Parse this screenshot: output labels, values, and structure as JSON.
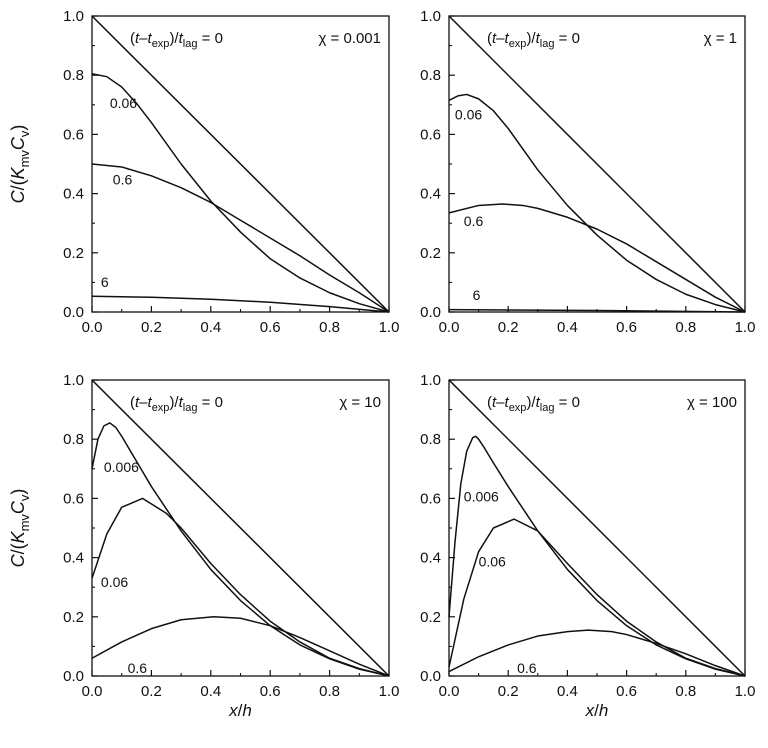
{
  "figure": {
    "y_axis_label": {
      "main": "C",
      "slash": "/(",
      "K": "K",
      "K_sub": "mv",
      "C": "C",
      "C_sub": "v",
      "close": ")"
    },
    "x_axis_label": {
      "x": "x",
      "slash": "/",
      "h": "h"
    },
    "time_label": {
      "open": "(",
      "t": "t",
      "dash": "–",
      "t2": "t",
      "sub_exp": "exp",
      "mid": ")/",
      "t3": "t",
      "sub_lag": "lag",
      "eq": " = 0"
    }
  },
  "chart_data": [
    {
      "type": "line",
      "panel": "top-left",
      "chi_label": "χ = 0.001",
      "xlim": [
        0,
        1
      ],
      "ylim": [
        0,
        1
      ],
      "xticks": [
        "0.0",
        "0.2",
        "0.4",
        "0.6",
        "0.8",
        "1.0"
      ],
      "yticks": [
        "0.0",
        "0.2",
        "0.4",
        "0.6",
        "0.8",
        "1.0"
      ],
      "show_xlabel": false,
      "show_ylabel": true,
      "series": [
        {
          "name": "0",
          "x": [
            0,
            1
          ],
          "y": [
            1,
            0
          ]
        },
        {
          "name": "0.06",
          "label": "0.06",
          "label_at": [
            0.06,
            0.69
          ],
          "x": [
            0,
            0.05,
            0.1,
            0.15,
            0.2,
            0.3,
            0.4,
            0.5,
            0.6,
            0.7,
            0.8,
            0.9,
            1.0
          ],
          "y": [
            0.805,
            0.795,
            0.76,
            0.705,
            0.64,
            0.5,
            0.375,
            0.27,
            0.18,
            0.115,
            0.065,
            0.028,
            0
          ]
        },
        {
          "name": "0.6",
          "label": "0.6",
          "label_at": [
            0.07,
            0.43
          ],
          "x": [
            0,
            0.1,
            0.2,
            0.3,
            0.4,
            0.5,
            0.6,
            0.7,
            0.8,
            0.9,
            1.0
          ],
          "y": [
            0.5,
            0.49,
            0.46,
            0.42,
            0.37,
            0.31,
            0.25,
            0.19,
            0.125,
            0.065,
            0
          ]
        },
        {
          "name": "6",
          "label": "6",
          "label_at": [
            0.03,
            0.085
          ],
          "x": [
            0,
            0.2,
            0.4,
            0.6,
            0.8,
            1.0
          ],
          "y": [
            0.053,
            0.05,
            0.043,
            0.033,
            0.018,
            0
          ]
        }
      ]
    },
    {
      "type": "line",
      "panel": "top-right",
      "chi_label": "χ = 1",
      "xlim": [
        0,
        1
      ],
      "ylim": [
        0,
        1
      ],
      "xticks": [
        "0.0",
        "0.2",
        "0.4",
        "0.6",
        "0.8",
        "1.0"
      ],
      "yticks": [
        "0.0",
        "0.2",
        "0.4",
        "0.6",
        "0.8",
        "1.0"
      ],
      "show_xlabel": false,
      "show_ylabel": false,
      "series": [
        {
          "name": "0",
          "x": [
            0,
            1
          ],
          "y": [
            1,
            0
          ]
        },
        {
          "name": "0.06",
          "label": "0.06",
          "label_at": [
            0.02,
            0.65
          ],
          "x": [
            0,
            0.03,
            0.06,
            0.1,
            0.15,
            0.2,
            0.3,
            0.4,
            0.5,
            0.6,
            0.7,
            0.8,
            0.9,
            1.0
          ],
          "y": [
            0.715,
            0.73,
            0.735,
            0.72,
            0.68,
            0.62,
            0.48,
            0.36,
            0.26,
            0.175,
            0.11,
            0.06,
            0.025,
            0
          ]
        },
        {
          "name": "0.6",
          "label": "0.6",
          "label_at": [
            0.05,
            0.29
          ],
          "x": [
            0,
            0.1,
            0.18,
            0.25,
            0.3,
            0.4,
            0.5,
            0.6,
            0.7,
            0.8,
            0.9,
            1.0
          ],
          "y": [
            0.335,
            0.36,
            0.365,
            0.36,
            0.35,
            0.32,
            0.28,
            0.23,
            0.17,
            0.11,
            0.05,
            0
          ]
        },
        {
          "name": "6",
          "label": "6",
          "label_at": [
            0.08,
            0.04
          ],
          "x": [
            0,
            0.5,
            1.0
          ],
          "y": [
            0.008,
            0.005,
            0
          ]
        }
      ]
    },
    {
      "type": "line",
      "panel": "bottom-left",
      "chi_label": "χ = 10",
      "xlim": [
        0,
        1
      ],
      "ylim": [
        0,
        1
      ],
      "xticks": [
        "0.0",
        "0.2",
        "0.4",
        "0.6",
        "0.8",
        "1.0"
      ],
      "yticks": [
        "0.0",
        "0.2",
        "0.4",
        "0.6",
        "0.8",
        "1.0"
      ],
      "show_xlabel": true,
      "show_ylabel": true,
      "series": [
        {
          "name": "0",
          "x": [
            0,
            1
          ],
          "y": [
            1,
            0
          ]
        },
        {
          "name": "0.006",
          "label": "0.006",
          "label_at": [
            0.04,
            0.69
          ],
          "x": [
            0,
            0.02,
            0.04,
            0.06,
            0.08,
            0.1,
            0.15,
            0.2,
            0.3,
            0.4,
            0.5,
            0.6,
            0.7,
            0.8,
            0.9,
            1.0
          ],
          "y": [
            0.7,
            0.8,
            0.845,
            0.855,
            0.84,
            0.81,
            0.725,
            0.64,
            0.49,
            0.36,
            0.255,
            0.17,
            0.105,
            0.058,
            0.023,
            0
          ]
        },
        {
          "name": "0.06",
          "label": "0.06",
          "label_at": [
            0.03,
            0.3
          ],
          "x": [
            0,
            0.05,
            0.1,
            0.17,
            0.25,
            0.3,
            0.4,
            0.5,
            0.6,
            0.7,
            0.8,
            0.9,
            1.0
          ],
          "y": [
            0.33,
            0.48,
            0.57,
            0.6,
            0.55,
            0.5,
            0.38,
            0.275,
            0.185,
            0.115,
            0.06,
            0.025,
            0
          ]
        },
        {
          "name": "0.6",
          "label": "0.6",
          "label_at": [
            0.12,
            0.01
          ],
          "x": [
            0,
            0.1,
            0.2,
            0.3,
            0.41,
            0.5,
            0.6,
            0.7,
            0.8,
            0.9,
            1.0
          ],
          "y": [
            0.06,
            0.115,
            0.16,
            0.19,
            0.2,
            0.195,
            0.17,
            0.13,
            0.085,
            0.04,
            0
          ]
        }
      ]
    },
    {
      "type": "line",
      "panel": "bottom-right",
      "chi_label": "χ = 100",
      "xlim": [
        0,
        1
      ],
      "ylim": [
        0,
        1
      ],
      "xticks": [
        "0.0",
        "0.2",
        "0.4",
        "0.6",
        "0.8",
        "1.0"
      ],
      "yticks": [
        "0.0",
        "0.2",
        "0.4",
        "0.6",
        "0.8",
        "1.0"
      ],
      "show_xlabel": true,
      "show_ylabel": false,
      "series": [
        {
          "name": "0",
          "x": [
            0,
            1
          ],
          "y": [
            1,
            0
          ]
        },
        {
          "name": "0.006",
          "label": "0.006",
          "label_at": [
            0.05,
            0.59
          ],
          "x": [
            0,
            0.02,
            0.04,
            0.06,
            0.08,
            0.09,
            0.1,
            0.12,
            0.15,
            0.2,
            0.3,
            0.4,
            0.5,
            0.6,
            0.7,
            0.8,
            0.9,
            1.0
          ],
          "y": [
            0.2,
            0.45,
            0.65,
            0.76,
            0.805,
            0.81,
            0.8,
            0.77,
            0.72,
            0.64,
            0.49,
            0.36,
            0.255,
            0.17,
            0.105,
            0.058,
            0.023,
            0
          ]
        },
        {
          "name": "0.06",
          "label": "0.06",
          "label_at": [
            0.1,
            0.37
          ],
          "x": [
            0,
            0.05,
            0.1,
            0.15,
            0.22,
            0.3,
            0.4,
            0.5,
            0.6,
            0.7,
            0.8,
            0.9,
            1.0
          ],
          "y": [
            0.03,
            0.26,
            0.42,
            0.5,
            0.53,
            0.49,
            0.38,
            0.275,
            0.185,
            0.115,
            0.06,
            0.025,
            0
          ]
        },
        {
          "name": "0.6",
          "label": "0.6",
          "label_at": [
            0.23,
            0.01
          ],
          "x": [
            0,
            0.1,
            0.2,
            0.3,
            0.4,
            0.47,
            0.55,
            0.6,
            0.7,
            0.8,
            0.9,
            1.0
          ],
          "y": [
            0.015,
            0.065,
            0.105,
            0.135,
            0.15,
            0.155,
            0.15,
            0.14,
            0.11,
            0.075,
            0.035,
            0
          ]
        }
      ]
    }
  ]
}
